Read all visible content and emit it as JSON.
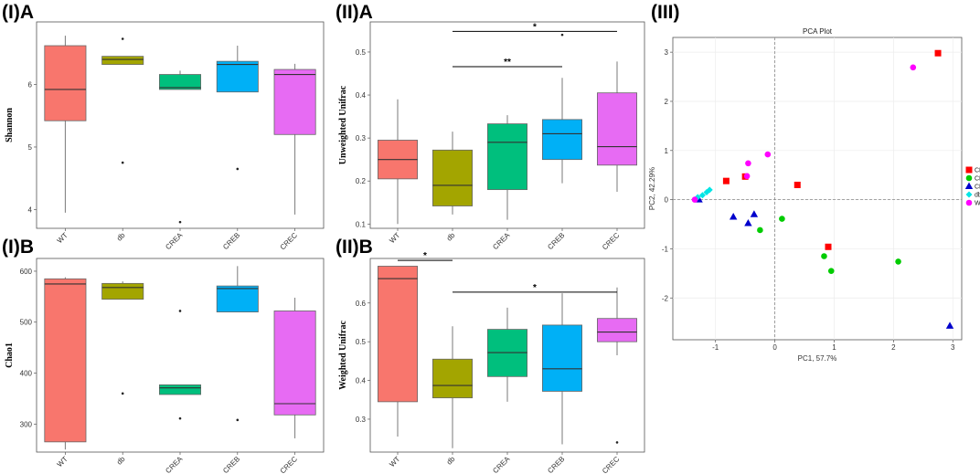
{
  "panel_labels": {
    "ia": "(I)A",
    "ib": "(I)B",
    "iia": "(II)A",
    "iib": "(II)B",
    "iii": "(III)"
  },
  "groups": [
    "WT",
    "db",
    "CREA",
    "CREB",
    "CREC"
  ],
  "colors": {
    "WT": "#f8766d",
    "db": "#a3a500",
    "CREA": "#00bf7d",
    "CREB": "#00b0f6",
    "CREC": "#e76bf3"
  },
  "chart_data": [
    {
      "id": "ia",
      "type": "boxplot",
      "ylabel": "Shannon",
      "ylim": [
        3.7,
        7.0
      ],
      "yticks": [
        4,
        5,
        6
      ],
      "categories": [
        "WT",
        "db",
        "CREA",
        "CREB",
        "CREC"
      ],
      "boxes": [
        {
          "group": "WT",
          "min": 3.95,
          "q1": 5.42,
          "median": 5.92,
          "q3": 6.62,
          "max": 6.78,
          "outliers": []
        },
        {
          "group": "db",
          "min": 6.32,
          "q1": 6.32,
          "median": 6.4,
          "q3": 6.45,
          "max": 6.45,
          "outliers": [
            6.73,
            4.75
          ]
        },
        {
          "group": "CREA",
          "min": 5.92,
          "q1": 5.92,
          "median": 5.95,
          "q3": 6.16,
          "max": 6.22,
          "outliers": [
            3.8
          ]
        },
        {
          "group": "CREB",
          "min": 5.88,
          "q1": 5.88,
          "median": 6.32,
          "q3": 6.37,
          "max": 6.62,
          "outliers": [
            4.65
          ]
        },
        {
          "group": "CREC",
          "min": 3.92,
          "q1": 5.2,
          "median": 6.16,
          "q3": 6.24,
          "max": 6.33,
          "outliers": []
        }
      ]
    },
    {
      "id": "ib",
      "type": "boxplot",
      "ylabel": "Chao1",
      "ylim": [
        245,
        625
      ],
      "yticks": [
        300,
        400,
        500,
        600
      ],
      "categories": [
        "WT",
        "db",
        "CREA",
        "CREB",
        "CREC"
      ],
      "boxes": [
        {
          "group": "WT",
          "min": 250,
          "q1": 265,
          "median": 575,
          "q3": 585,
          "max": 588,
          "outliers": []
        },
        {
          "group": "db",
          "min": 545,
          "q1": 545,
          "median": 568,
          "q3": 576,
          "max": 580,
          "outliers": [
            360
          ]
        },
        {
          "group": "CREA",
          "min": 358,
          "q1": 358,
          "median": 371,
          "q3": 377,
          "max": 377,
          "outliers": [
            522,
            311
          ]
        },
        {
          "group": "CREB",
          "min": 520,
          "q1": 520,
          "median": 566,
          "q3": 571,
          "max": 610,
          "outliers": [
            308
          ]
        },
        {
          "group": "CREC",
          "min": 272,
          "q1": 318,
          "median": 340,
          "q3": 522,
          "max": 548,
          "outliers": []
        }
      ]
    },
    {
      "id": "iia",
      "type": "boxplot",
      "ylabel": "Unweighted Unifrac",
      "ylim": [
        0.09,
        0.57
      ],
      "yticks": [
        0.1,
        0.2,
        0.3,
        0.4,
        0.5
      ],
      "categories": [
        "WT",
        "db",
        "CREA",
        "CREB",
        "CREC"
      ],
      "boxes": [
        {
          "group": "WT",
          "min": 0.1,
          "q1": 0.205,
          "median": 0.25,
          "q3": 0.295,
          "max": 0.39,
          "outliers": []
        },
        {
          "group": "db",
          "min": 0.122,
          "q1": 0.142,
          "median": 0.19,
          "q3": 0.272,
          "max": 0.315,
          "outliers": []
        },
        {
          "group": "CREA",
          "min": 0.11,
          "q1": 0.18,
          "median": 0.29,
          "q3": 0.333,
          "max": 0.353,
          "outliers": []
        },
        {
          "group": "CREB",
          "min": 0.195,
          "q1": 0.25,
          "median": 0.31,
          "q3": 0.343,
          "max": 0.44,
          "outliers": [
            0.54
          ]
        },
        {
          "group": "CREC",
          "min": 0.175,
          "q1": 0.237,
          "median": 0.28,
          "q3": 0.405,
          "max": 0.478,
          "outliers": []
        }
      ],
      "significance": [
        {
          "from": "db",
          "to": "CREC",
          "y": 0.548,
          "label": "*"
        },
        {
          "from": "db",
          "to": "CREB",
          "y": 0.466,
          "label": "**"
        }
      ]
    },
    {
      "id": "iib",
      "type": "boxplot",
      "ylabel": "Weighted Unifrac",
      "ylim": [
        0.215,
        0.715
      ],
      "yticks": [
        0.3,
        0.4,
        0.5,
        0.6
      ],
      "categories": [
        "WT",
        "db",
        "CREA",
        "CREB",
        "CREC"
      ],
      "boxes": [
        {
          "group": "WT",
          "min": 0.255,
          "q1": 0.345,
          "median": 0.663,
          "q3": 0.695,
          "max": 0.695,
          "outliers": []
        },
        {
          "group": "db",
          "min": 0.225,
          "q1": 0.355,
          "median": 0.387,
          "q3": 0.455,
          "max": 0.54,
          "outliers": []
        },
        {
          "group": "CREA",
          "min": 0.345,
          "q1": 0.41,
          "median": 0.472,
          "q3": 0.532,
          "max": 0.588,
          "outliers": []
        },
        {
          "group": "CREB",
          "min": 0.235,
          "q1": 0.372,
          "median": 0.43,
          "q3": 0.543,
          "max": 0.625,
          "outliers": []
        },
        {
          "group": "CREC",
          "min": 0.465,
          "q1": 0.5,
          "median": 0.525,
          "q3": 0.56,
          "max": 0.64,
          "outliers": [
            0.24
          ]
        }
      ],
      "significance": [
        {
          "from": "WT",
          "to": "db",
          "y": 0.71,
          "label": "*"
        },
        {
          "from": "db",
          "to": "CREC",
          "y": 0.628,
          "label": "*"
        }
      ]
    },
    {
      "id": "iii",
      "type": "scatter",
      "title": "PCA Plot",
      "xlabel": "PC1, 57.7%",
      "ylabel": "PC2, 42.29%",
      "xlim": [
        -1.72,
        3.15
      ],
      "ylim": [
        -2.85,
        3.3
      ],
      "xticks": [
        -1,
        0,
        1,
        2,
        3
      ],
      "yticks": [
        -2,
        -1,
        0,
        1,
        2,
        3
      ],
      "legend": [
        "CREA",
        "CREB",
        "CREC",
        "db",
        "WT"
      ],
      "series": [
        {
          "name": "CREA",
          "marker": "square",
          "color": "#ff0000",
          "points": [
            [
              2.75,
              2.98
            ],
            [
              -0.82,
              0.38
            ],
            [
              -0.5,
              0.47
            ],
            [
              0.38,
              0.3
            ],
            [
              0.9,
              -0.96
            ]
          ]
        },
        {
          "name": "CREB",
          "marker": "circle",
          "color": "#00cc00",
          "points": [
            [
              0.12,
              -0.39
            ],
            [
              -0.25,
              -0.62
            ],
            [
              0.83,
              -1.15
            ],
            [
              0.95,
              -1.45
            ],
            [
              2.08,
              -1.26
            ]
          ]
        },
        {
          "name": "CREC",
          "marker": "triangle",
          "color": "#0000cc",
          "points": [
            [
              -1.28,
              0.0
            ],
            [
              -0.7,
              -0.35
            ],
            [
              -0.45,
              -0.48
            ],
            [
              -0.35,
              -0.3
            ],
            [
              2.95,
              -2.57
            ]
          ]
        },
        {
          "name": "db",
          "marker": "diamond",
          "color": "#00e5e5",
          "points": [
            [
              -1.3,
              0.05
            ],
            [
              -1.22,
              0.09
            ],
            [
              -1.15,
              0.15
            ],
            [
              -1.1,
              0.2
            ]
          ]
        },
        {
          "name": "WT",
          "marker": "circle",
          "color": "#ff00ff",
          "points": [
            [
              -1.35,
              0.0
            ],
            [
              -0.45,
              0.74
            ],
            [
              -0.47,
              0.48
            ],
            [
              -0.12,
              0.92
            ],
            [
              2.33,
              2.69
            ]
          ]
        }
      ]
    }
  ]
}
